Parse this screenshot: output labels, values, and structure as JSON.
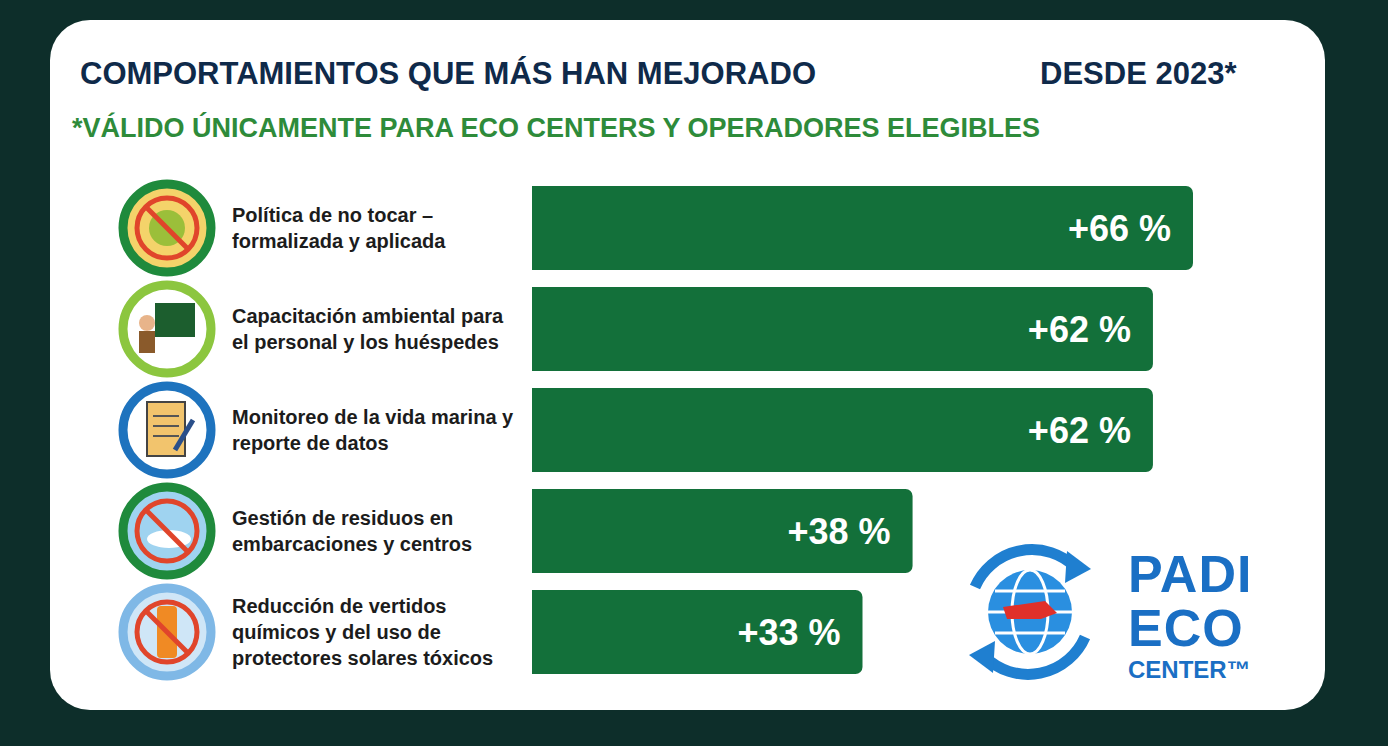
{
  "chart_data": {
    "type": "bar",
    "title": "COMPORTAMIENTOS QUE MÁS HAN MEJORADO",
    "subtitle": "*VÁLIDO ÚNICAMENTE PARA ECO CENTERS Y OPERADORES ELEGIBLES",
    "annotations": [
      "DESDE 2023*"
    ],
    "orientation": "horizontal",
    "categories": [
      "Política de no tocar – formalizada y aplicada",
      "Capacitación ambiental para el personal y los huéspedes",
      "Monitoreo de la vida marina y reporte de datos",
      "Gestión de residuos en embarcaciones y centros",
      "Reducción de vertidos químicos y del uso de protectores solares tóxicos"
    ],
    "values": [
      66,
      62,
      62,
      38,
      33
    ],
    "value_labels": [
      "+66 %",
      "+62 %",
      "+62 %",
      "+38 %",
      "+33 %"
    ],
    "color": "#13703a",
    "xlim": [
      0,
      66
    ],
    "data_labels": true,
    "tick_labels": false,
    "grid": false
  },
  "logo": [
    "PADI",
    "ECO",
    "CENTER™"
  ]
}
